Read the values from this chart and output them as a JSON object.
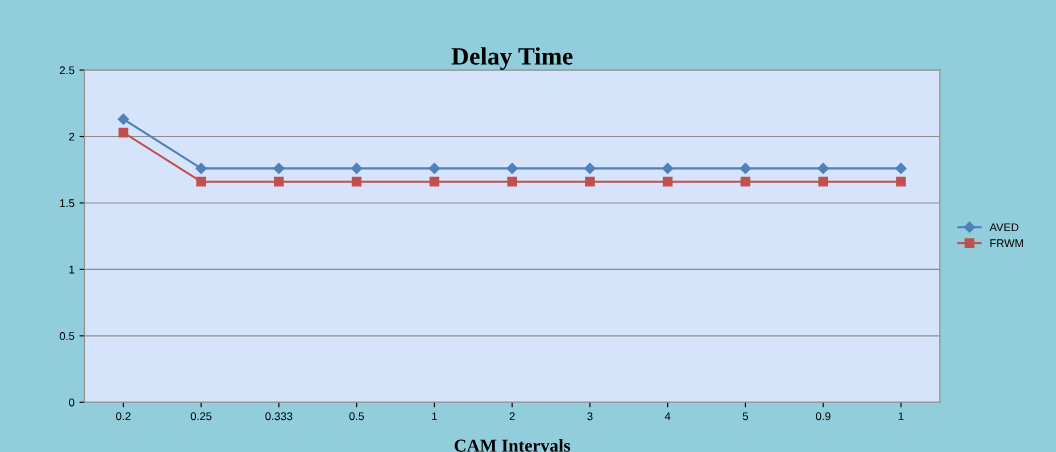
{
  "chart_data": {
    "type": "line",
    "title": "Delay Time",
    "xlabel": "CAM Intervals",
    "categories": [
      "0.2",
      "0.25",
      "0.333",
      "0.5",
      "1",
      "2",
      "3",
      "4",
      "5",
      "0.9",
      "1"
    ],
    "series": [
      {
        "name": "AVED",
        "color": "#4f81bd",
        "marker": "diamond",
        "values": [
          2.13,
          1.76,
          1.76,
          1.76,
          1.76,
          1.76,
          1.76,
          1.76,
          1.76,
          1.76,
          1.76
        ]
      },
      {
        "name": "FRWM",
        "color": "#c0504d",
        "marker": "square",
        "values": [
          2.03,
          1.66,
          1.66,
          1.66,
          1.66,
          1.66,
          1.66,
          1.66,
          1.66,
          1.66,
          1.66
        ]
      }
    ],
    "ylim": [
      0,
      2.5
    ],
    "yticks": [
      0,
      0.5,
      1,
      1.5,
      2,
      2.5
    ],
    "grid": "y",
    "legend": "right",
    "line_style": "solid"
  }
}
